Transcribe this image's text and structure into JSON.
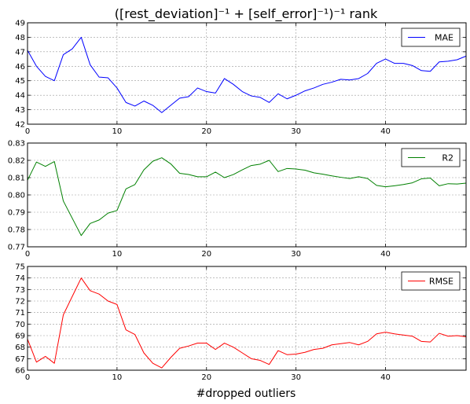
{
  "figure": {
    "title": "([rest_deviation]⁻¹ + [self_error]⁻¹)⁻¹ rank",
    "xlabel": "#dropped outliers"
  },
  "chart_data": [
    {
      "type": "line",
      "title": "",
      "xlabel": "",
      "ylabel": "",
      "xlim": [
        0,
        49
      ],
      "ylim": [
        42,
        49
      ],
      "x_ticks": [
        0,
        10,
        20,
        30,
        40
      ],
      "y_ticks": [
        42,
        43,
        44,
        45,
        46,
        47,
        48,
        49
      ],
      "grid": true,
      "legend_position": "top-right",
      "x": [
        0,
        1,
        2,
        3,
        4,
        5,
        6,
        7,
        8,
        9,
        10,
        11,
        12,
        13,
        14,
        15,
        16,
        17,
        18,
        19,
        20,
        21,
        22,
        23,
        24,
        25,
        26,
        27,
        28,
        29,
        30,
        31,
        32,
        33,
        34,
        35,
        36,
        37,
        38,
        39,
        40,
        41,
        42,
        43,
        44,
        45,
        46,
        47,
        48,
        49
      ],
      "series": [
        {
          "name": "MAE",
          "color": "#0000ff",
          "values": [
            47.1,
            46.0,
            45.3,
            45.0,
            46.8,
            47.2,
            48.0,
            46.1,
            45.25,
            45.2,
            44.5,
            43.5,
            43.25,
            43.6,
            43.3,
            42.8,
            43.3,
            43.8,
            43.9,
            44.5,
            44.25,
            44.15,
            45.15,
            44.75,
            44.25,
            43.95,
            43.85,
            43.5,
            44.1,
            43.75,
            44.0,
            44.3,
            44.5,
            44.75,
            44.9,
            45.1,
            45.05,
            45.15,
            45.5,
            46.2,
            46.5,
            46.2,
            46.2,
            46.05,
            45.7,
            45.65,
            46.3,
            46.35,
            46.45,
            46.7
          ]
        }
      ]
    },
    {
      "type": "line",
      "title": "",
      "xlabel": "",
      "ylabel": "",
      "xlim": [
        0,
        49
      ],
      "ylim": [
        0.77,
        0.83
      ],
      "x_ticks": [
        0,
        10,
        20,
        30,
        40
      ],
      "y_ticks": [
        "0.77",
        "0.78",
        "0.79",
        "0.80",
        "0.81",
        "0.82",
        "0.83"
      ],
      "grid": true,
      "legend_position": "top-right",
      "x": [
        0,
        1,
        2,
        3,
        4,
        5,
        6,
        7,
        8,
        9,
        10,
        11,
        12,
        13,
        14,
        15,
        16,
        17,
        18,
        19,
        20,
        21,
        22,
        23,
        24,
        25,
        26,
        27,
        28,
        29,
        30,
        31,
        32,
        33,
        34,
        35,
        36,
        37,
        38,
        39,
        40,
        41,
        42,
        43,
        44,
        45,
        46,
        47,
        48,
        49
      ],
      "series": [
        {
          "name": "R2",
          "color": "#008000",
          "values": [
            0.8085,
            0.819,
            0.8165,
            0.8193,
            0.7965,
            0.7865,
            0.7765,
            0.7835,
            0.7855,
            0.7895,
            0.791,
            0.8035,
            0.806,
            0.8145,
            0.8195,
            0.8215,
            0.818,
            0.8125,
            0.8118,
            0.8105,
            0.8105,
            0.8132,
            0.81,
            0.8118,
            0.8145,
            0.817,
            0.8178,
            0.82,
            0.8135,
            0.8153,
            0.815,
            0.8143,
            0.8128,
            0.812,
            0.811,
            0.8102,
            0.8095,
            0.8105,
            0.8095,
            0.8055,
            0.8047,
            0.8053,
            0.806,
            0.807,
            0.8093,
            0.8098,
            0.8053,
            0.8065,
            0.8063,
            0.8068
          ]
        }
      ]
    },
    {
      "type": "line",
      "title": "",
      "xlabel": "#dropped outliers",
      "ylabel": "",
      "xlim": [
        0,
        49
      ],
      "ylim": [
        66,
        75
      ],
      "x_ticks": [
        0,
        10,
        20,
        30,
        40
      ],
      "y_ticks": [
        66,
        67,
        68,
        69,
        70,
        71,
        72,
        73,
        74,
        75
      ],
      "grid": true,
      "legend_position": "top-right",
      "x": [
        0,
        1,
        2,
        3,
        4,
        5,
        6,
        7,
        8,
        9,
        10,
        11,
        12,
        13,
        14,
        15,
        16,
        17,
        18,
        19,
        20,
        21,
        22,
        23,
        24,
        25,
        26,
        27,
        28,
        29,
        30,
        31,
        32,
        33,
        34,
        35,
        36,
        37,
        38,
        39,
        40,
        41,
        42,
        43,
        44,
        45,
        46,
        47,
        48,
        49
      ],
      "series": [
        {
          "name": "RMSE",
          "color": "#ff0000",
          "values": [
            68.7,
            66.7,
            67.2,
            66.6,
            70.8,
            72.4,
            74.0,
            72.9,
            72.6,
            72.0,
            71.7,
            69.5,
            69.1,
            67.5,
            66.6,
            66.2,
            67.1,
            67.9,
            68.1,
            68.35,
            68.35,
            67.8,
            68.35,
            68.0,
            67.5,
            67.0,
            66.85,
            66.5,
            67.7,
            67.35,
            67.4,
            67.55,
            67.8,
            67.9,
            68.2,
            68.3,
            68.4,
            68.2,
            68.5,
            69.15,
            69.3,
            69.15,
            69.05,
            68.95,
            68.5,
            68.45,
            69.2,
            68.95,
            69.0,
            68.9
          ]
        }
      ]
    }
  ]
}
